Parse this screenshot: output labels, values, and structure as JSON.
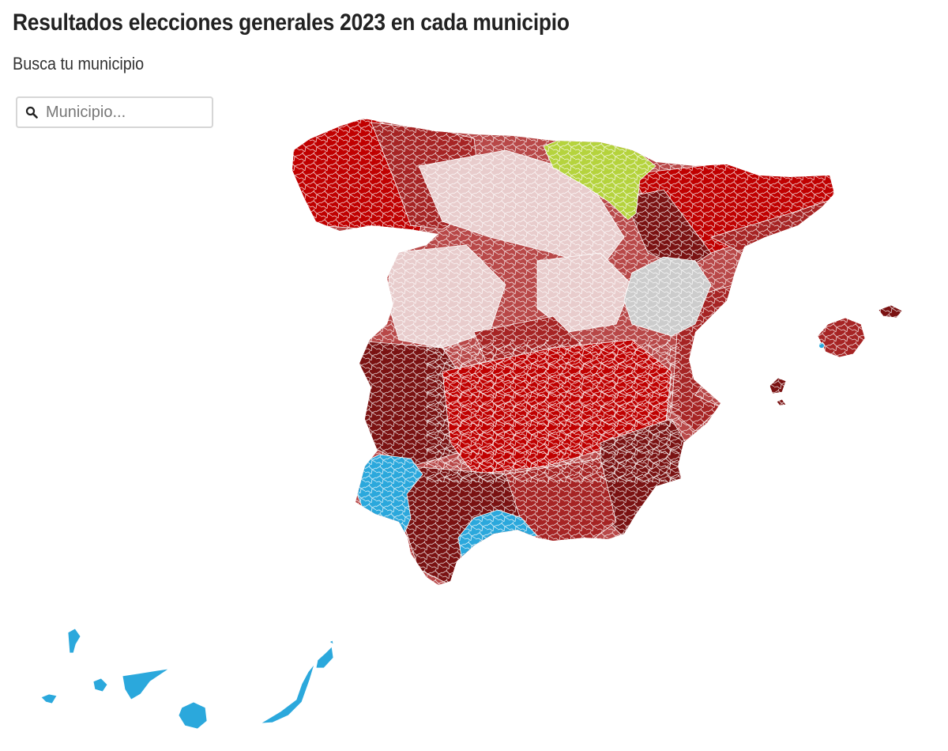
{
  "header": {
    "title": "Resultados elecciones generales 2023 en cada municipio",
    "subtitle": "Busca tu municipio"
  },
  "search": {
    "placeholder": "Municipio...",
    "value": "",
    "icon": "search-icon"
  },
  "map": {
    "colors": {
      "pp_dark": "#7a1212",
      "pp_red": "#c00000",
      "pp_mid": "#a62424",
      "psoe_light": "#e8cccc",
      "mixed": "#b84848",
      "bildu_green": "#b5d33d",
      "teruel_gray": "#cccccc",
      "pp_blue": "#2ba8dc",
      "border": "#ffffff"
    }
  }
}
